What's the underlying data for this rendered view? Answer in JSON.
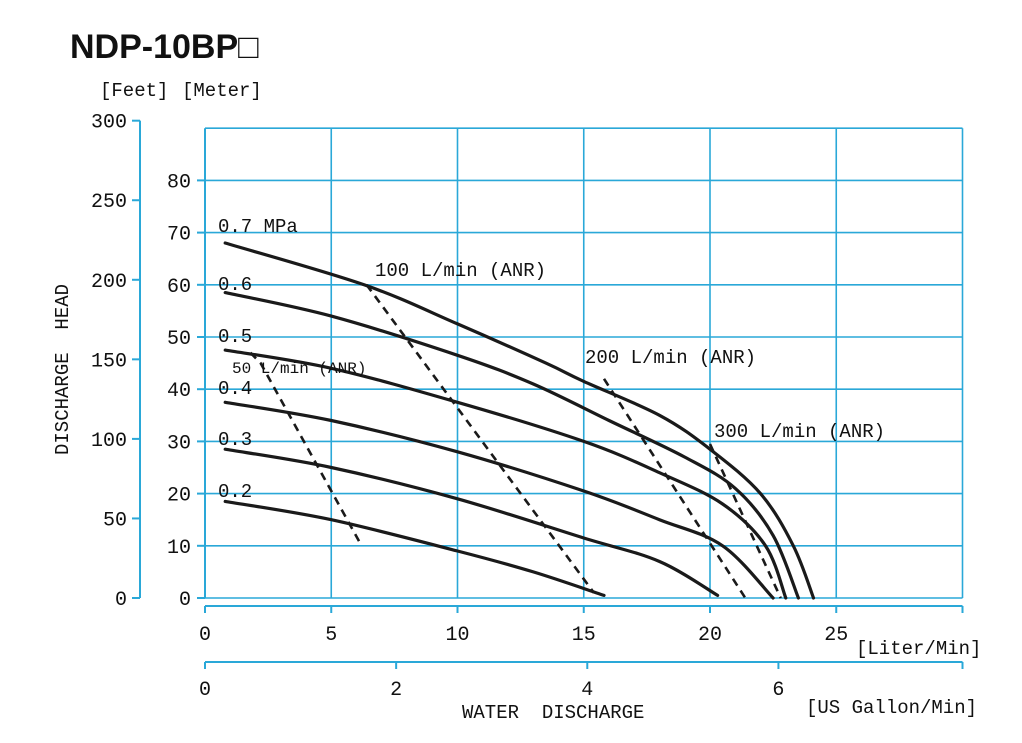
{
  "chart_data": {
    "type": "line",
    "title": "NDP-10BP□",
    "units": {
      "feet": "[Feet]",
      "meter": "[Meter]",
      "liter": "[Liter/Min]",
      "usgal": "[US Gallon/Min]"
    },
    "ylabel": "DISCHARGE  HEAD",
    "xlabel": "WATER  DISCHARGE",
    "x_lim": [
      0,
      30
    ],
    "y_lim_m": [
      0,
      90
    ],
    "meter_ticks": [
      0,
      10,
      20,
      30,
      40,
      50,
      60,
      70,
      80
    ],
    "feet_ticks": [
      0,
      50,
      100,
      150,
      200,
      250,
      300
    ],
    "liter_ticks": [
      0,
      5,
      10,
      15,
      20,
      25
    ],
    "gallon_ticks": [
      0,
      2,
      4,
      6
    ],
    "x_grid": [
      0,
      5,
      10,
      15,
      20,
      25,
      30
    ],
    "y_grid": [
      0,
      10,
      20,
      30,
      40,
      50,
      60,
      70,
      80,
      90
    ],
    "series": [
      {
        "name": "0.7 MPa",
        "points": [
          [
            0.8,
            68
          ],
          [
            6.3,
            60
          ],
          [
            10,
            52.5
          ],
          [
            13.5,
            45
          ],
          [
            15,
            41.5
          ],
          [
            18,
            35
          ],
          [
            20,
            28.5
          ],
          [
            22,
            20
          ],
          [
            23.3,
            10
          ],
          [
            24.1,
            0
          ]
        ]
      },
      {
        "name": "0.6",
        "points": [
          [
            0.8,
            58.5
          ],
          [
            5,
            54
          ],
          [
            10,
            46.5
          ],
          [
            13,
            41
          ],
          [
            16,
            34
          ],
          [
            19,
            27
          ],
          [
            21,
            21
          ],
          [
            22.5,
            12
          ],
          [
            23.5,
            0
          ]
        ]
      },
      {
        "name": "0.5",
        "points": [
          [
            0.8,
            47.5
          ],
          [
            5,
            44
          ],
          [
            10,
            37.5
          ],
          [
            15,
            30
          ],
          [
            18,
            24
          ],
          [
            20.5,
            18
          ],
          [
            22.2,
            10
          ],
          [
            23,
            0
          ]
        ]
      },
      {
        "name": "0.4",
        "points": [
          [
            0.8,
            37.5
          ],
          [
            5,
            34
          ],
          [
            10,
            28
          ],
          [
            15,
            20.5
          ],
          [
            18,
            15
          ],
          [
            20.5,
            10
          ],
          [
            22.5,
            0
          ]
        ]
      },
      {
        "name": "0.3",
        "points": [
          [
            0.8,
            28.5
          ],
          [
            5,
            25
          ],
          [
            10,
            19
          ],
          [
            15,
            11.5
          ],
          [
            18,
            7
          ],
          [
            20.3,
            0.5
          ]
        ]
      },
      {
        "name": "0.2",
        "points": [
          [
            0.8,
            18.5
          ],
          [
            5,
            15
          ],
          [
            10,
            9
          ],
          [
            13,
            5
          ],
          [
            15.8,
            0.5
          ]
        ]
      }
    ],
    "air_lines": [
      {
        "name": "50 L/min (ANR)",
        "points": [
          [
            1.8,
            47
          ],
          [
            2.2,
            45
          ],
          [
            6.2,
            10
          ]
        ]
      },
      {
        "name": "100 L/min (ANR)",
        "points": [
          [
            6.4,
            60
          ],
          [
            15.4,
            1
          ]
        ]
      },
      {
        "name": "200 L/min (ANR)",
        "points": [
          [
            15.8,
            42
          ],
          [
            21.4,
            0
          ]
        ]
      },
      {
        "name": "300 L/min (ANR)",
        "points": [
          [
            20,
            29.5
          ],
          [
            22.8,
            0
          ]
        ]
      }
    ],
    "curve_labels": [
      "0.7 MPa",
      "0.6",
      "0.5",
      "0.4",
      "0.3",
      "0.2"
    ],
    "air_labels": [
      "100 L/min (ANR)",
      "200 L/min (ANR)",
      "300 L/min (ANR)",
      "50 L/min (ANR)"
    ]
  }
}
